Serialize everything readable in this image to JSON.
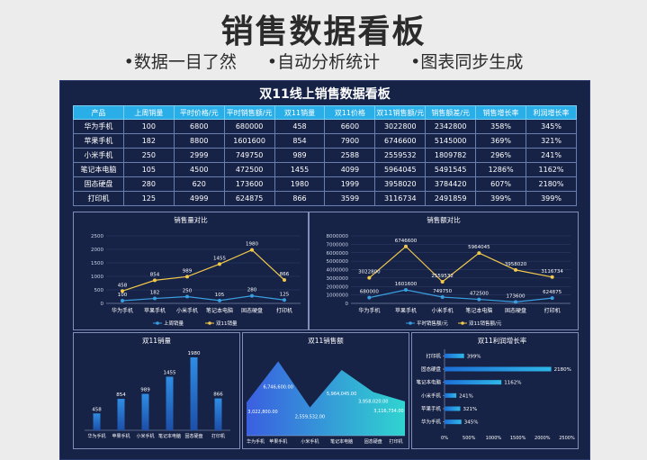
{
  "header": {
    "title": "销售数据看板",
    "features": [
      "•数据一目了然",
      "•自动分析统计",
      "•图表同步生成"
    ]
  },
  "board": {
    "title": "双11线上销售数据看板",
    "table": {
      "headers": [
        "产品",
        "上周销量",
        "平时价格/元",
        "平时销售额/元",
        "双11销量",
        "双11价格",
        "双11销售额/元",
        "销售额差/元",
        "销售增长率",
        "利润增长率"
      ],
      "rows": [
        [
          "华为手机",
          "100",
          "6800",
          "680000",
          "458",
          "6600",
          "3022800",
          "2342800",
          "358%",
          "345%"
        ],
        [
          "苹果手机",
          "182",
          "8800",
          "1601600",
          "854",
          "7900",
          "6746600",
          "5145000",
          "369%",
          "321%"
        ],
        [
          "小米手机",
          "250",
          "2999",
          "749750",
          "989",
          "2588",
          "2559532",
          "1809782",
          "296%",
          "241%"
        ],
        [
          "笔记本电脑",
          "105",
          "4500",
          "472500",
          "1455",
          "4099",
          "5964045",
          "5491545",
          "1286%",
          "1162%"
        ],
        [
          "固态硬盘",
          "280",
          "620",
          "173600",
          "1980",
          "1999",
          "3958020",
          "3784420",
          "607%",
          "2180%"
        ],
        [
          "打印机",
          "125",
          "4999",
          "624875",
          "866",
          "3599",
          "3116734",
          "2491859",
          "399%",
          "399%"
        ]
      ]
    }
  },
  "chart_data": [
    {
      "id": "vol",
      "type": "line",
      "title": "销售量对比",
      "categories": [
        "华为手机",
        "苹果手机",
        "小米手机",
        "笔记本电脑",
        "固态硬盘",
        "打印机"
      ],
      "series": [
        {
          "name": "上周销量",
          "values": [
            100,
            182,
            250,
            105,
            280,
            125
          ],
          "color": "#3a9fe0"
        },
        {
          "name": "双11销量",
          "values": [
            458,
            854,
            989,
            1455,
            1980,
            866
          ],
          "color": "#f2c94c"
        }
      ],
      "ylim": [
        0,
        2500
      ],
      "yticks": [
        0,
        500,
        1000,
        1500,
        2000,
        2500
      ],
      "legend": "bottom"
    },
    {
      "id": "amt",
      "type": "line",
      "title": "销售额对比",
      "categories": [
        "华为手机",
        "苹果手机",
        "小米手机",
        "笔记本电脑",
        "固态硬盘",
        "打印机"
      ],
      "series": [
        {
          "name": "平时销售额/元",
          "values": [
            680000,
            1601600,
            749750,
            472500,
            173600,
            624875
          ],
          "color": "#3a9fe0"
        },
        {
          "name": "双11销售额/元",
          "values": [
            3022800,
            6746600,
            2559532,
            5964045,
            3958020,
            3116734
          ],
          "color": "#f2c94c"
        }
      ],
      "ylim": [
        0,
        8000000
      ],
      "yticks": [
        0,
        1000000,
        2000000,
        3000000,
        4000000,
        5000000,
        6000000,
        7000000,
        8000000
      ],
      "legend": "bottom"
    },
    {
      "id": "bar",
      "type": "bar",
      "title": "双11销量",
      "categories": [
        "华为手机",
        "苹果手机",
        "小米手机",
        "笔记本电脑",
        "固态硬盘",
        "打印机"
      ],
      "values": [
        458,
        854,
        989,
        1455,
        1980,
        866
      ],
      "ylim": [
        0,
        2200
      ]
    },
    {
      "id": "area",
      "type": "area",
      "title": "双11销售额",
      "categories": [
        "华为手机",
        "苹果手机",
        "小米手机",
        "笔记本电脑",
        "固态硬盘",
        "打印机"
      ],
      "values": [
        3022800,
        6746600,
        2559532,
        5964045,
        3958020,
        3116734
      ],
      "labels": [
        "3,022,800.00",
        "6,746,600.00",
        "2,559,532.00",
        "5,964,045.00",
        "3,958,020.00",
        "3,116,734.00"
      ],
      "ylim": [
        0,
        8000000
      ]
    },
    {
      "id": "hbar",
      "type": "bar",
      "orientation": "horizontal",
      "title": "双11利润增长率",
      "categories": [
        "打印机",
        "固态硬盘",
        "笔记本电脑",
        "小米手机",
        "苹果手机",
        "华为手机"
      ],
      "values": [
        399,
        2180,
        1162,
        241,
        321,
        345
      ],
      "labels": [
        "399%",
        "2180%",
        "1162%",
        "241%",
        "321%",
        "345%"
      ],
      "xlim": [
        0,
        2500
      ],
      "xticks": [
        "0%",
        "500%",
        "1000%",
        "1500%",
        "2000%",
        "2500%"
      ]
    }
  ]
}
